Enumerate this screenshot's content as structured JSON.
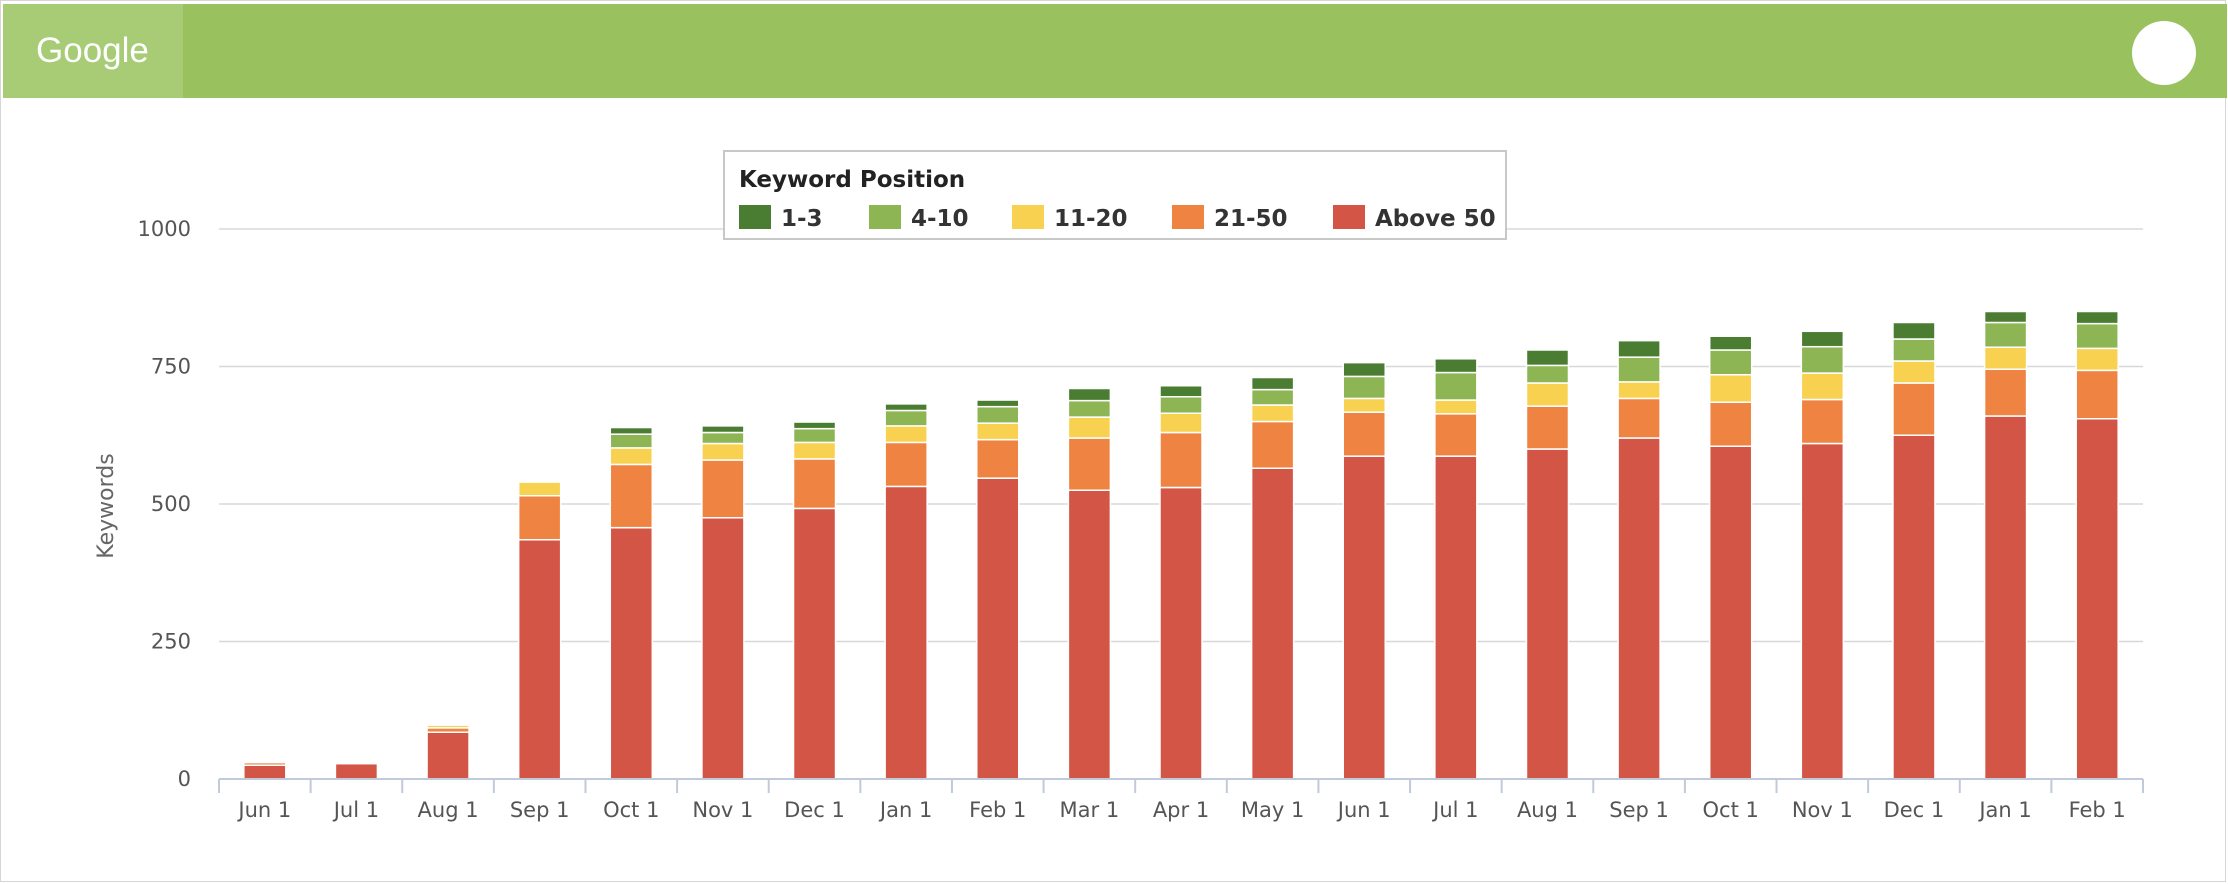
{
  "header": {
    "tab_label": "Google",
    "accent": "#99c25f"
  },
  "chart_data": {
    "type": "bar",
    "stacked": true,
    "title": "",
    "xlabel": "",
    "ylabel": "Keywords",
    "ylim": [
      0,
      1000
    ],
    "yticks": [
      0,
      250,
      500,
      750,
      1000
    ],
    "grid": true,
    "legend": {
      "title": "Keyword Position",
      "placement": "top-center"
    },
    "categories": [
      "Jun 1",
      "Jul 1",
      "Aug 1",
      "Sep 1",
      "Oct 1",
      "Nov 1",
      "Dec 1",
      "Jan 1",
      "Feb 1",
      "Mar 1",
      "Apr 1",
      "May 1",
      "Jun 1",
      "Jul 1",
      "Aug 1",
      "Sep 1",
      "Oct 1",
      "Nov 1",
      "Dec 1",
      "Jan 1",
      "Feb 1"
    ],
    "series": [
      {
        "name": "1-3",
        "color": "#4a7d32",
        "values": [
          0,
          0,
          0,
          2,
          12,
          12,
          12,
          12,
          12,
          22,
          20,
          22,
          25,
          25,
          28,
          30,
          25,
          28,
          30,
          20,
          22
        ]
      },
      {
        "name": "4-10",
        "color": "#8db554",
        "values": [
          1,
          0,
          2,
          2,
          25,
          20,
          25,
          28,
          30,
          30,
          30,
          28,
          40,
          50,
          32,
          45,
          45,
          48,
          40,
          45,
          45
        ]
      },
      {
        "name": "11-20",
        "color": "#f9d150",
        "values": [
          2,
          0,
          5,
          25,
          30,
          30,
          30,
          30,
          30,
          38,
          35,
          30,
          25,
          25,
          42,
          30,
          50,
          48,
          40,
          40,
          40
        ]
      },
      {
        "name": "21-50",
        "color": "#ef8341",
        "values": [
          5,
          2,
          8,
          80,
          115,
          105,
          90,
          80,
          70,
          95,
          100,
          85,
          80,
          77,
          78,
          72,
          80,
          80,
          95,
          85,
          88
        ]
      },
      {
        "name": "Above 50",
        "color": "#d25546",
        "values": [
          25,
          28,
          85,
          435,
          457,
          475,
          492,
          532,
          547,
          525,
          530,
          565,
          587,
          587,
          600,
          620,
          605,
          610,
          625,
          660,
          655
        ]
      }
    ]
  }
}
